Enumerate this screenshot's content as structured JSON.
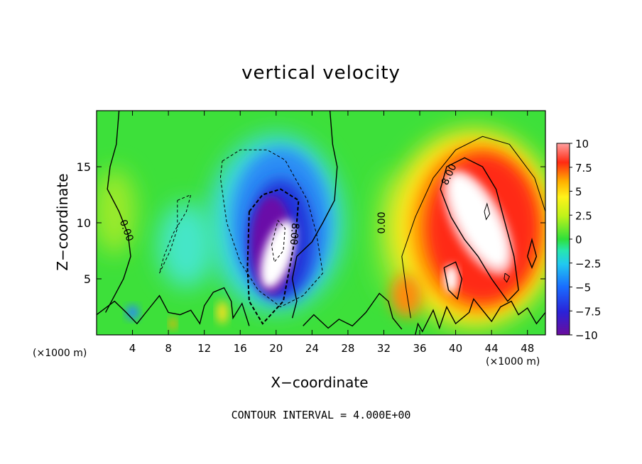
{
  "chart_data": {
    "type": "heatmap",
    "title": "vertical velocity",
    "xlabel": "X−coordinate",
    "ylabel": "Z−coordinate",
    "x_unit": "(×1000 m)",
    "x_ticks": [
      4,
      8,
      12,
      16,
      20,
      24,
      28,
      32,
      36,
      40,
      44,
      48
    ],
    "y_ticks": [
      5,
      10,
      15
    ],
    "xlim": [
      0,
      50
    ],
    "ylim": [
      0,
      20
    ],
    "contour_interval_label": "CONTOUR INTERVAL = 4.000E+00",
    "contour_labels": [
      "0.00",
      "0.00",
      "8.00",
      "8.00"
    ],
    "colorbar": {
      "ticks": [
        "10",
        "7.5",
        "5",
        "2.5",
        "0",
        "−2.5",
        "−5",
        "−7.5",
        "−10"
      ],
      "range": [
        -10,
        10
      ]
    },
    "features": [
      {
        "name": "downdraft core",
        "x": 20,
        "z": 7,
        "value": -12
      },
      {
        "name": "updraft core",
        "x": 42,
        "z": 10,
        "value": 12
      },
      {
        "name": "updraft lobe",
        "x": 39.5,
        "z": 5,
        "value": 9
      },
      {
        "name": "updraft lobe",
        "x": 45,
        "z": 5.5,
        "value": 9
      }
    ]
  }
}
